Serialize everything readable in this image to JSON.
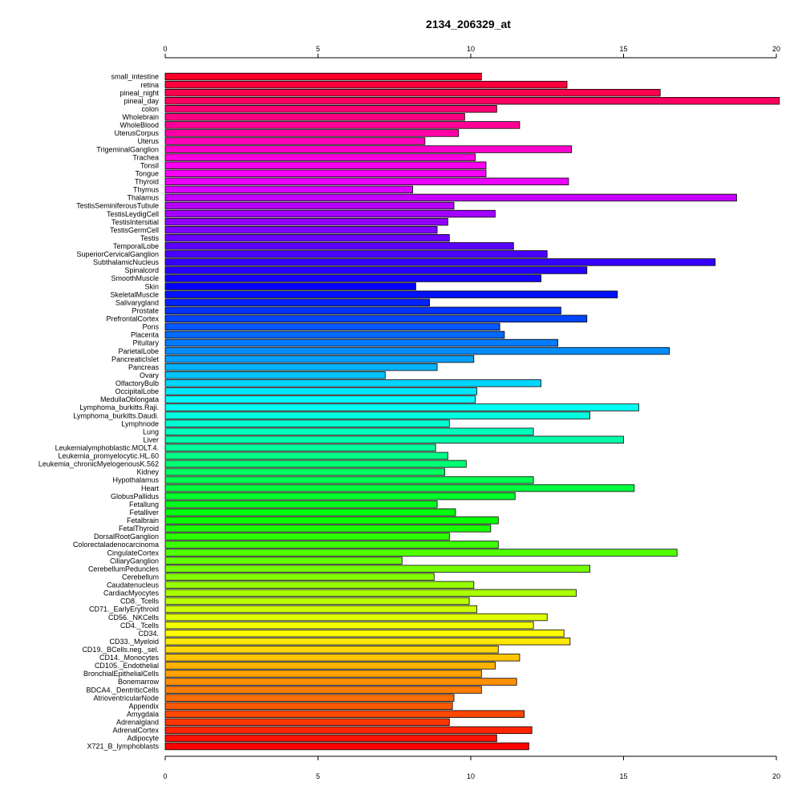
{
  "chart_data": {
    "type": "bar",
    "orientation": "horizontal",
    "title": "2134_206329_at",
    "xlabel": "",
    "ylabel": "",
    "xlim": [
      0,
      20
    ],
    "x_ticks": [
      "0",
      "5",
      "10",
      "15",
      "20"
    ],
    "axes_positions": "top and bottom",
    "grid": false,
    "legend": "none",
    "color_scheme": "rainbow from red at top through magenta, blue, cyan, green, yellow, orange back to red at bottom",
    "categories": [
      "small_intestine",
      "retina",
      "pineal_night",
      "pineal_day",
      "colon",
      "Wholebrain",
      "WholeBlood",
      "UterusCorpus",
      "Uterus",
      "TrigeminalGanglion",
      "Trachea",
      "Tonsil",
      "Tongue",
      "Thyroid",
      "Thymus",
      "Thalamus",
      "TestisSeminiferousTubule",
      "TestisLeydigCell",
      "TestisIntersitial",
      "TestisGermCell",
      "Testis",
      "TemporalLobe",
      "SuperiorCervicalGanglion",
      "SubthalamicNucleus",
      "Spinalcord",
      "SmoothMuscle",
      "Skin",
      "SkeletalMuscle",
      "Salivarygland",
      "Prostate",
      "PrefrontalCortex",
      "Pons",
      "Placenta",
      "Pituitary",
      "ParietalLobe",
      "PancreaticIslet",
      "Pancreas",
      "Ovary",
      "OlfactoryBulb",
      "OccipitalLobe",
      "MedullaOblongata",
      "Lymphoma_burkitts.Raji.",
      "Lymphoma_burkitts.Daudi.",
      "Lymphnode",
      "Lung",
      "Liver",
      "Leukemialymphoblastic.MOLT.4.",
      "Leukemia_promyelocytic.HL.60",
      "Leukemia_chronicMyelogenousK.562",
      "Kidney",
      "Hypothalamus",
      "Heart",
      "GlobusPallidus",
      "Fetallung",
      "Fetalliver",
      "Fetalbrain",
      "FetalThyroid",
      "DorsalRootGanglion",
      "Colorectaladenocarcinoma",
      "CingulateCortex",
      "CiliaryGanglion",
      "CerebellumPeduncles",
      "Cerebellum",
      "Caudatenucleus",
      "CardiacMyocytes",
      "CD8._Tcells",
      "CD71._EarlyErythroid",
      "CD56._NKCells",
      "CD4._Tcells",
      "CD34.",
      "CD33._Myeloid",
      "CD19._BCells.neg._sel.",
      "CD14._Monocytes",
      "CD105._Endothelial",
      "BronchialEpithelialCells",
      "Bonemarrow",
      "BDCA4._DentriticCells",
      "AtrioventricularNode",
      "Appendix",
      "Amygdala",
      "Adrenalgland",
      "AdrenalCortex",
      "Adipocyte",
      "X721_B_lymphoblasts"
    ],
    "values": [
      10.35,
      13.15,
      16.2,
      20.1,
      10.85,
      9.8,
      11.6,
      9.6,
      8.5,
      13.3,
      10.15,
      10.5,
      10.5,
      13.2,
      8.1,
      18.7,
      9.45,
      10.8,
      9.25,
      8.9,
      9.3,
      11.4,
      12.5,
      18.0,
      13.8,
      12.3,
      8.2,
      14.8,
      8.65,
      12.95,
      13.8,
      10.95,
      11.1,
      12.85,
      16.5,
      10.1,
      8.9,
      7.2,
      12.3,
      10.2,
      10.15,
      15.5,
      13.9,
      9.3,
      12.05,
      15.0,
      8.85,
      9.25,
      9.85,
      9.15,
      12.05,
      15.35,
      11.45,
      8.9,
      9.5,
      10.9,
      10.65,
      9.3,
      10.9,
      16.75,
      7.75,
      13.9,
      8.8,
      10.1,
      13.45,
      9.95,
      10.2,
      12.5,
      12.05,
      13.05,
      13.25,
      10.9,
      11.6,
      10.8,
      10.35,
      11.5,
      10.35,
      9.45,
      9.4,
      11.75,
      9.3,
      12.0,
      10.85,
      11.9
    ]
  }
}
